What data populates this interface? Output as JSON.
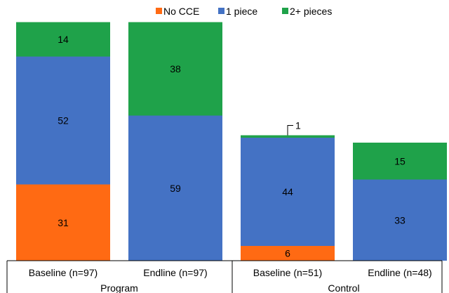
{
  "chart_data": {
    "type": "bar",
    "stacked": true,
    "legend_position": "top",
    "grid": false,
    "ylim": [
      0,
      100
    ],
    "groups": [
      {
        "name": "Program",
        "categories": [
          "Baseline (n=97)",
          "Endline (n=97)"
        ]
      },
      {
        "name": "Control",
        "categories": [
          "Baseline (n=51)",
          "Endline (n=48)"
        ]
      }
    ],
    "categories": [
      "Baseline (n=97)",
      "Endline (n=97)",
      "Baseline (n=51)",
      "Endline (n=48)"
    ],
    "series": [
      {
        "name": "No CCE",
        "color": "#FF6A13",
        "values": [
          31,
          0,
          6,
          0
        ],
        "labels": [
          "31",
          "",
          "6",
          ""
        ]
      },
      {
        "name": "1 piece",
        "color": "#4472C4",
        "values": [
          52,
          59,
          44,
          33
        ],
        "labels": [
          "52",
          "59",
          "44",
          "33"
        ]
      },
      {
        "name": "2+ pieces",
        "color": "#1FA24A",
        "values": [
          14,
          38,
          1,
          15
        ],
        "labels": [
          "14",
          "38",
          "1",
          "15"
        ]
      }
    ],
    "callouts": [
      {
        "category_index": 2,
        "series_index": 2,
        "text": "1"
      }
    ]
  }
}
